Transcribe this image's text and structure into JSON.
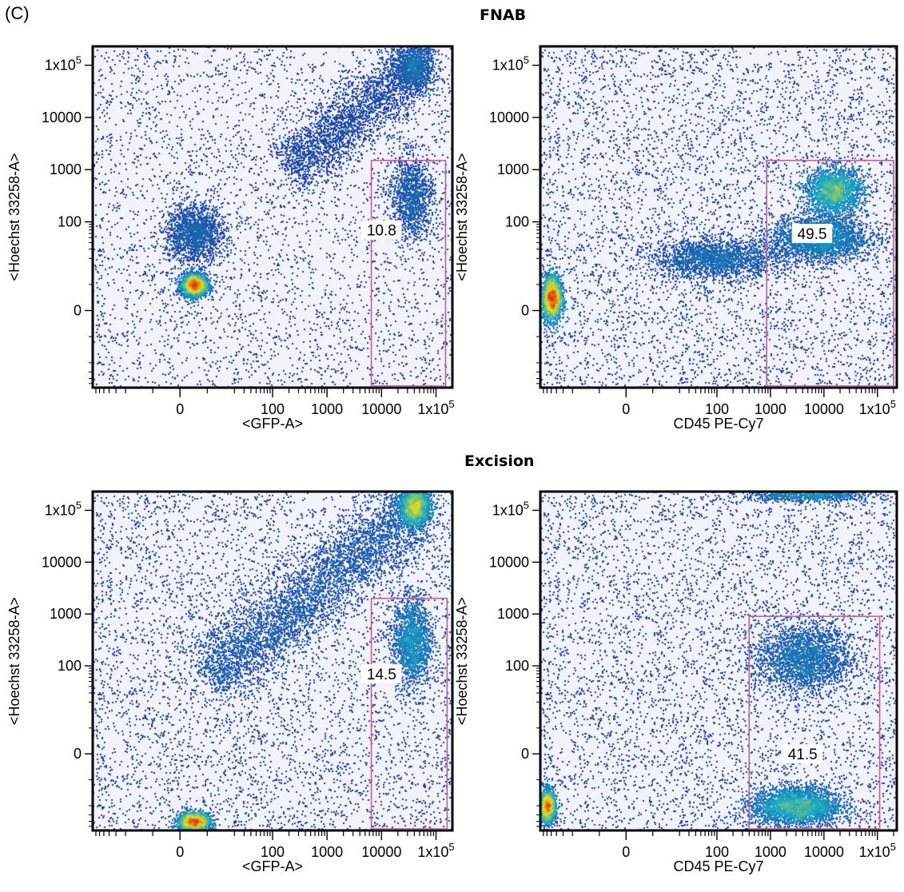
{
  "panel_label": "(C)",
  "sections": [
    "FNAB",
    "Excision"
  ],
  "colors": {
    "plot_bg": "#f1f3f6",
    "gate": "#c0609a",
    "density_low": "#1f2d9c",
    "density_mid": "#16a8c8",
    "density_high": "#e6e21a",
    "density_peak": "#e2231a"
  },
  "chart_data": [
    {
      "type": "scatter",
      "title": "FNAB",
      "xlabel": "<GFP-A>",
      "ylabel": "<Hoechst 33258-A>",
      "x_scale": "biexponential",
      "y_scale": "biexponential",
      "xlim": [
        -80,
        200000
      ],
      "ylim": [
        -60,
        230000
      ],
      "xticks": [
        {
          "v": 0,
          "label": "0"
        },
        {
          "v": 100,
          "label": "100"
        },
        {
          "v": 1000,
          "label": "1000"
        },
        {
          "v": 10000,
          "label": "10000"
        },
        {
          "v": 100000,
          "label": "1x10",
          "sup": "5"
        }
      ],
      "yticks": [
        {
          "v": 0,
          "label": "0"
        },
        {
          "v": 100,
          "label": "100"
        },
        {
          "v": 1000,
          "label": "1000"
        },
        {
          "v": 10000,
          "label": "10000"
        },
        {
          "v": 100000,
          "label": "1x10",
          "sup": "5"
        }
      ],
      "populations": [
        {
          "x": 5,
          "y": 10,
          "sx": 8,
          "sy": 7,
          "n": 2600,
          "w": 2.2
        },
        {
          "x": 5,
          "y": 60,
          "sx": 18,
          "sy": 18,
          "n": 1700,
          "w": 0.7
        },
        {
          "x": 35000,
          "y": 300,
          "sx": 14,
          "sy": 26,
          "n": 1300,
          "w": 0.9
        },
        {
          "x": 40000,
          "y": 100000,
          "sx": 12,
          "sy": 16,
          "n": 1200,
          "w": 0.9
        },
        {
          "diag": [
            [
              200,
              1000
            ],
            [
              40000,
              100000
            ]
          ],
          "spread": 18,
          "n": 2600,
          "w": 0.5
        }
      ],
      "background_points": 3800,
      "gate": {
        "x": [
          6500,
          150000
        ],
        "y": [
          -60,
          1500
        ],
        "value": "10.8",
        "label_at": [
          10000,
          70
        ]
      }
    },
    {
      "type": "scatter",
      "title": "FNAB",
      "xlabel": "CD45 PE-Cy7",
      "ylabel": "<Hoechst 33258-A>",
      "x_scale": "biexponential",
      "y_scale": "biexponential",
      "xlim": [
        -80,
        230000
      ],
      "ylim": [
        -60,
        230000
      ],
      "xticks": [
        {
          "v": 0,
          "label": "0"
        },
        {
          "v": 100,
          "label": "100"
        },
        {
          "v": 1000,
          "label": "1000"
        },
        {
          "v": 10000,
          "label": "10000"
        },
        {
          "v": 100000,
          "label": "1x10",
          "sup": "5"
        }
      ],
      "yticks": [
        {
          "v": 0,
          "label": "0"
        },
        {
          "v": 100,
          "label": "100"
        },
        {
          "v": 1000,
          "label": "1000"
        },
        {
          "v": 10000,
          "label": "10000"
        },
        {
          "v": 100000,
          "label": "1x10",
          "sup": "5"
        }
      ],
      "populations": [
        {
          "x": -50,
          "y": 5,
          "sx": 6,
          "sy": 14,
          "n": 2200,
          "w": 2.0
        },
        {
          "x": 15000,
          "y": 400,
          "sx": 18,
          "sy": 15,
          "n": 2200,
          "w": 1.8
        },
        {
          "x": 8000,
          "y": 50,
          "sx": 30,
          "sy": 14,
          "n": 2600,
          "w": 0.9
        },
        {
          "x": 100,
          "y": 20,
          "sx": 40,
          "sy": 12,
          "n": 2000,
          "w": 0.6
        }
      ],
      "background_points": 5200,
      "gate": {
        "x": [
          850,
          200000
        ],
        "y": [
          -60,
          1500
        ],
        "value": "49.5",
        "label_at": [
          6000,
          60
        ]
      }
    },
    {
      "type": "scatter",
      "title": "Excision",
      "xlabel": "<GFP-A>",
      "ylabel": "<Hoechst 33258-A>",
      "x_scale": "biexponential",
      "y_scale": "biexponential",
      "xlim": [
        -80,
        200000
      ],
      "ylim": [
        -60,
        230000
      ],
      "xticks": [
        {
          "v": 0,
          "label": "0"
        },
        {
          "v": 100,
          "label": "100"
        },
        {
          "v": 1000,
          "label": "1000"
        },
        {
          "v": 10000,
          "label": "10000"
        },
        {
          "v": 100000,
          "label": "1x10",
          "sup": "5"
        }
      ],
      "yticks": [
        {
          "v": 0,
          "label": "0"
        },
        {
          "v": 100,
          "label": "100"
        },
        {
          "v": 1000,
          "label": "1000"
        },
        {
          "v": 10000,
          "label": "10000"
        },
        {
          "v": 100000,
          "label": "1x10",
          "sup": "5"
        }
      ],
      "populations": [
        {
          "x": 5,
          "y": -40,
          "sx": 10,
          "sy": 6,
          "n": 1800,
          "w": 1.6
        },
        {
          "x": 40000,
          "y": 120000,
          "sx": 10,
          "sy": 12,
          "n": 1800,
          "w": 1.6
        },
        {
          "x": 35000,
          "y": 300,
          "sx": 12,
          "sy": 28,
          "n": 1800,
          "w": 1.1
        },
        {
          "diag": [
            [
              10,
              60
            ],
            [
              40000,
              110000
            ]
          ],
          "spread": 22,
          "n": 4200,
          "w": 0.7
        }
      ],
      "background_points": 6500,
      "gate": {
        "x": [
          6500,
          160000
        ],
        "y": [
          -60,
          2000
        ],
        "value": "14.5",
        "label_at": [
          10000,
          70
        ]
      }
    },
    {
      "type": "scatter",
      "title": "Excision",
      "xlabel": "CD45 PE-Cy7",
      "ylabel": "<Hoechst 33258-A>",
      "x_scale": "biexponential",
      "y_scale": "biexponential",
      "xlim": [
        -80,
        230000
      ],
      "ylim": [
        -60,
        230000
      ],
      "xticks": [
        {
          "v": 0,
          "label": "0"
        },
        {
          "v": 100,
          "label": "100"
        },
        {
          "v": 1000,
          "label": "1000"
        },
        {
          "v": 10000,
          "label": "10000"
        },
        {
          "v": 100000,
          "label": "1x10",
          "sup": "5"
        }
      ],
      "yticks": [
        {
          "v": 0,
          "label": "0"
        },
        {
          "v": 100,
          "label": "100"
        },
        {
          "v": 1000,
          "label": "1000"
        },
        {
          "v": 10000,
          "label": "10000"
        },
        {
          "v": 100000,
          "label": "1x10",
          "sup": "5"
        }
      ],
      "populations": [
        {
          "x": 3000,
          "y": -20,
          "sx": 28,
          "sy": 12,
          "n": 3000,
          "w": 1.2
        },
        {
          "x": -60,
          "y": -20,
          "sx": 5,
          "sy": 10,
          "n": 1500,
          "w": 1.3
        },
        {
          "x": 4000,
          "y": 150,
          "sx": 30,
          "sy": 22,
          "n": 2400,
          "w": 0.7
        },
        {
          "x": 5000,
          "y": 200000,
          "sx": 40,
          "sy": 4,
          "n": 900,
          "w": 0.8
        }
      ],
      "background_points": 5600,
      "gate": {
        "x": [
          400,
          110000
        ],
        "y": [
          -60,
          900
        ],
        "value": "41.5",
        "label_at": [
          4000,
          0
        ]
      }
    }
  ]
}
